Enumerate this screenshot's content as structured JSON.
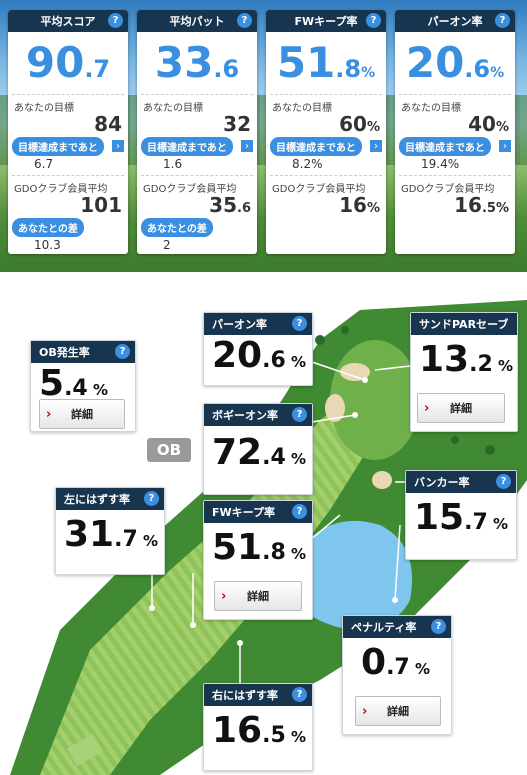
{
  "summary": [
    {
      "title": "平均スコア",
      "int": "90",
      "dec": ".7",
      "pct": "",
      "goal_label": "あなたの目標",
      "goal": "84",
      "goal_suffix": "",
      "remain_label": "目標達成まであと",
      "remain": "6.7",
      "avg_label": "GDOクラブ会員平均",
      "avg": "101",
      "avg_suffix": "",
      "diff_label": "あなたとの差",
      "diff": "10.3"
    },
    {
      "title": "平均パット",
      "int": "33",
      "dec": ".6",
      "pct": "",
      "goal_label": "あなたの目標",
      "goal": "32",
      "goal_suffix": "",
      "remain_label": "目標達成まであと",
      "remain": "1.6",
      "avg_label": "GDOクラブ会員平均",
      "avg": "35",
      "avg_suffix": ".6",
      "diff_label": "あなたとの差",
      "diff": "2"
    },
    {
      "title": "FWキープ率",
      "int": "51",
      "dec": ".8",
      "pct": "%",
      "goal_label": "あなたの目標",
      "goal": "60",
      "goal_suffix": "%",
      "remain_label": "目標達成まであと",
      "remain": "8.2%",
      "avg_label": "GDOクラブ会員平均",
      "avg": "16",
      "avg_suffix": "%",
      "diff_label": "",
      "diff": ""
    },
    {
      "title": "パーオン率",
      "int": "20",
      "dec": ".6",
      "pct": "%",
      "goal_label": "あなたの目標",
      "goal": "40",
      "goal_suffix": "%",
      "remain_label": "目標達成まであと",
      "remain": "19.4%",
      "avg_label": "GDOクラブ会員平均",
      "avg": "16",
      "avg_suffix": ".5%",
      "diff_label": "",
      "diff": ""
    }
  ],
  "help_icon": "?",
  "arrow_icon": "›",
  "map": {
    "ob_tag": "OB",
    "details_label": "詳細",
    "stats": {
      "ob": {
        "title": "OB発生率",
        "int": "5",
        "dec": ".4",
        "pct": " %"
      },
      "paron": {
        "title": "パーオン率",
        "int": "20",
        "dec": ".6",
        "pct": " %"
      },
      "sand": {
        "title": "サンドPARセーブ",
        "int": "13",
        "dec": ".2",
        "pct": " %"
      },
      "bogey": {
        "title": "ボギーオン率",
        "int": "72",
        "dec": ".4",
        "pct": " %"
      },
      "left": {
        "title": "左にはずす率",
        "int": "31",
        "dec": ".7",
        "pct": " %"
      },
      "fw": {
        "title": "FWキープ率",
        "int": "51",
        "dec": ".8",
        "pct": " %"
      },
      "bunker": {
        "title": "バンカー率",
        "int": "15",
        "dec": ".7",
        "pct": " %"
      },
      "penalty": {
        "title": "ペナルティ率",
        "int": "0",
        "dec": ".7",
        "pct": " %"
      },
      "right": {
        "title": "右にはずす率",
        "int": "16",
        "dec": ".5",
        "pct": " %"
      }
    }
  }
}
